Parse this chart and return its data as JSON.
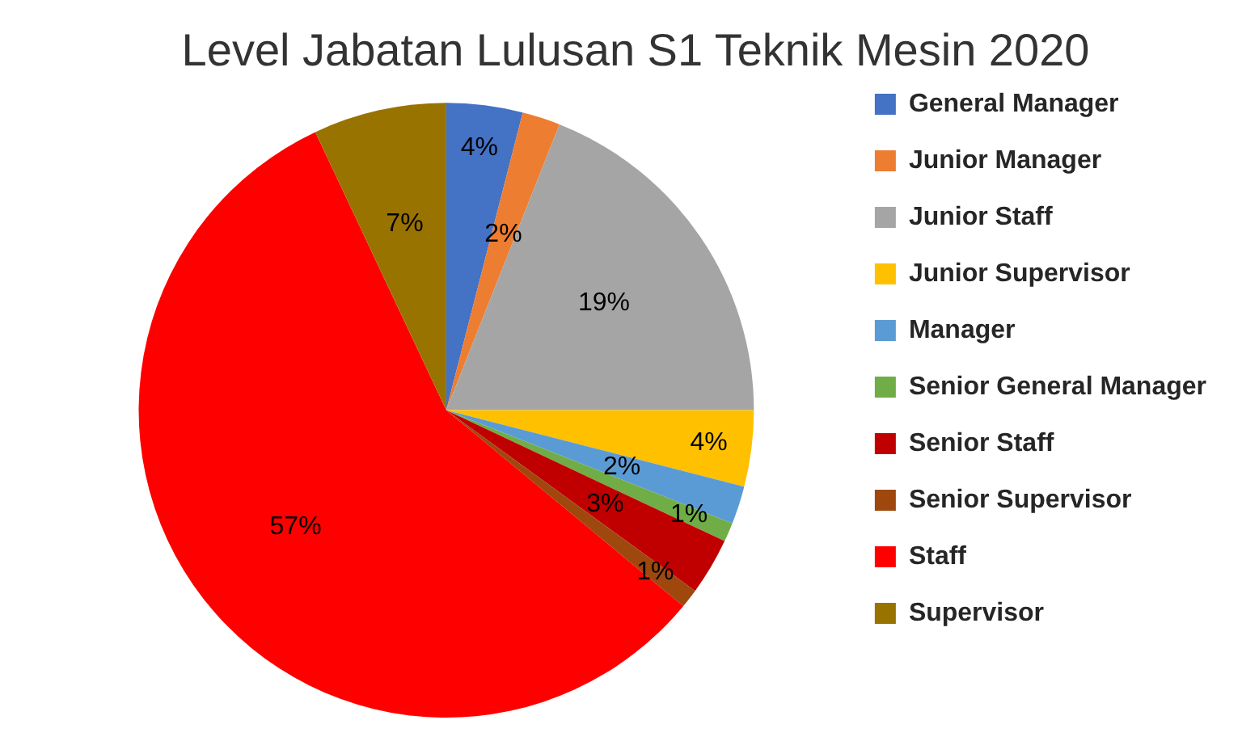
{
  "chart_data": {
    "type": "pie",
    "title": "Level Jabatan Lulusan S1 Teknik Mesin 2020",
    "categories": [
      "General Manager",
      "Junior Manager",
      "Junior Staff",
      "Junior Supervisor",
      "Manager",
      "Senior General Manager",
      "Senior Staff",
      "Senior Supervisor",
      "Staff",
      "Supervisor"
    ],
    "values": [
      4,
      2,
      19,
      4,
      2,
      1,
      3,
      1,
      57,
      7
    ],
    "colors": [
      "#4472c4",
      "#ed7d31",
      "#a5a5a5",
      "#ffc000",
      "#5b9bd5",
      "#70ad47",
      "#c00000",
      "#9e480e",
      "#ff0000",
      "#997300"
    ],
    "value_labels": [
      "4%",
      "2%",
      "19%",
      "4%",
      "2%",
      "1%",
      "3%",
      "1%",
      "57%",
      "7%"
    ],
    "legend": "right"
  }
}
